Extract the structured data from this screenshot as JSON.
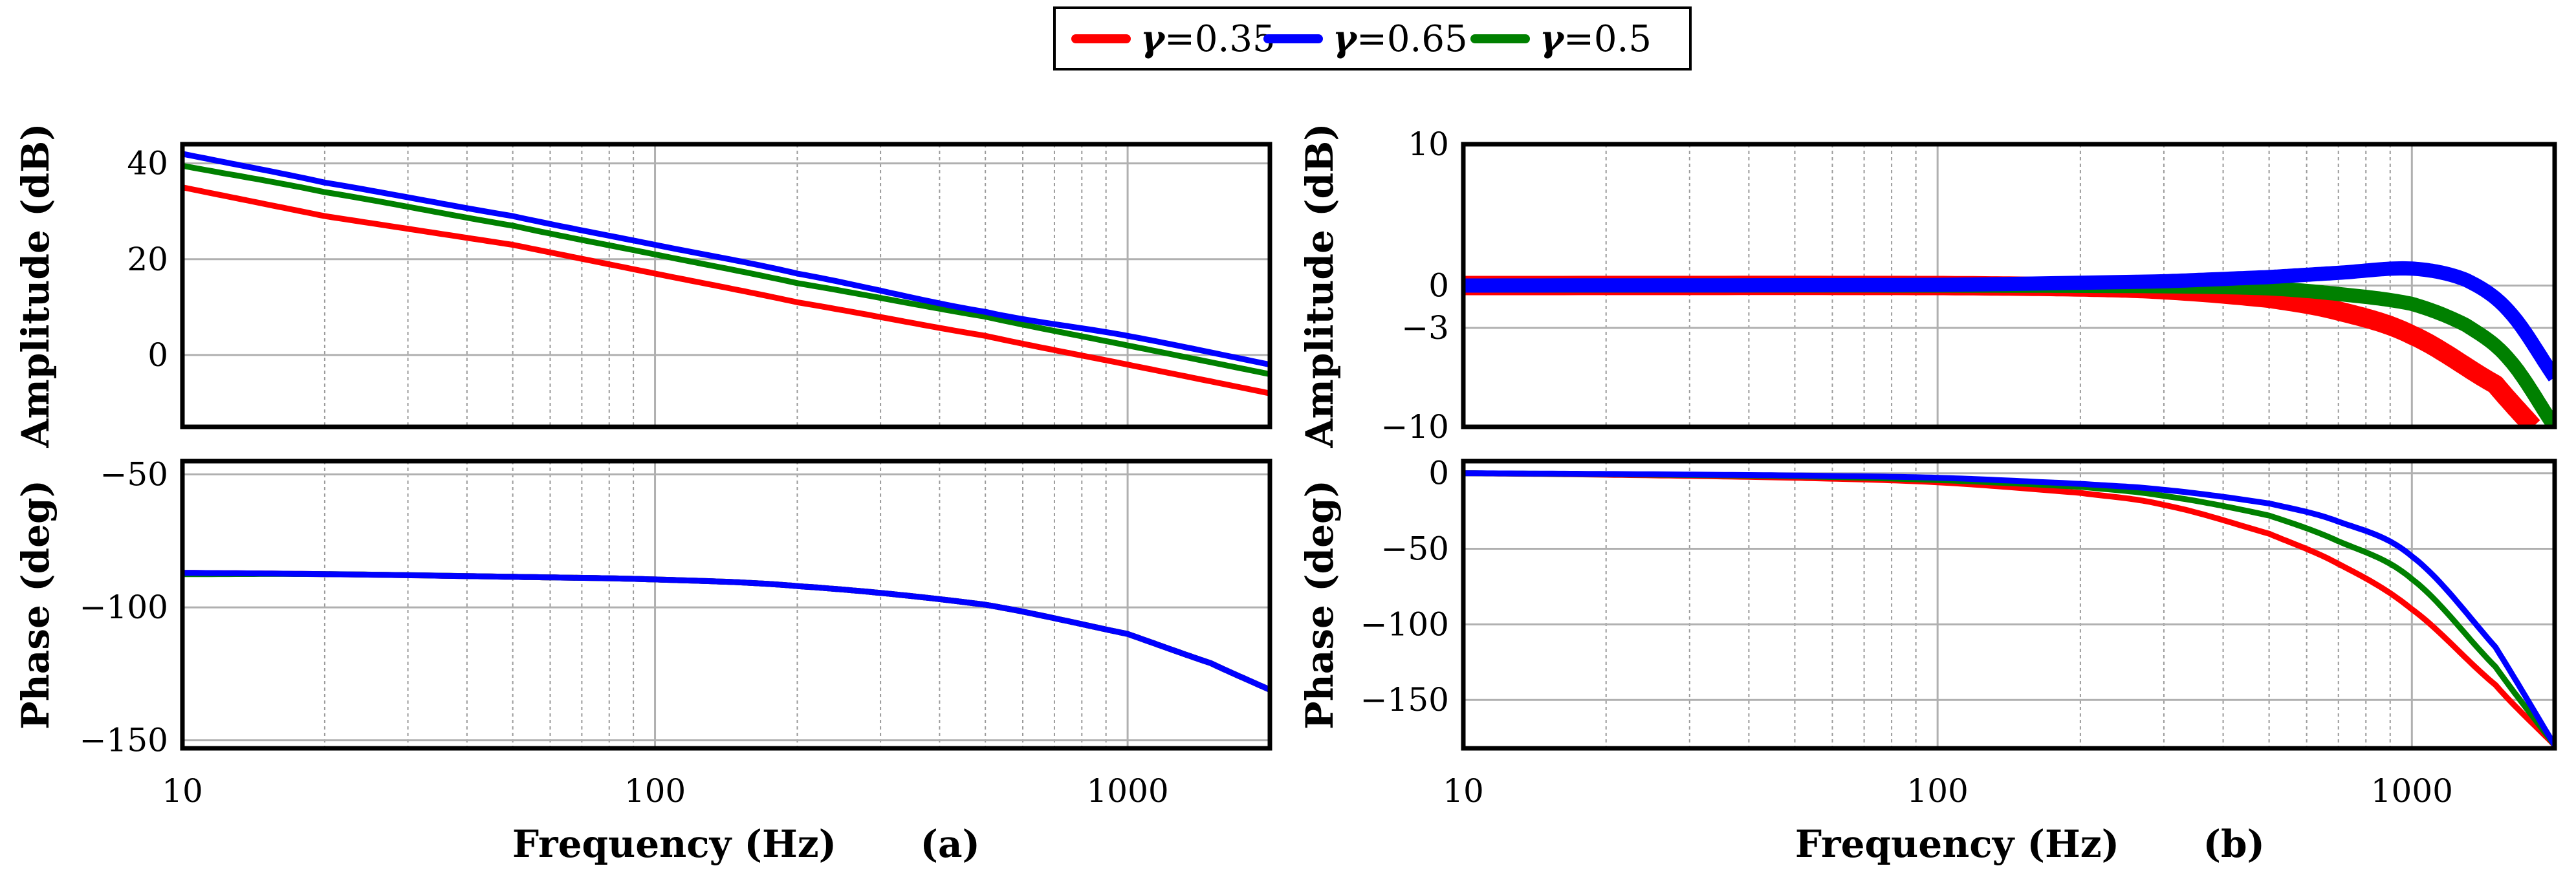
{
  "chart_data": {
    "type": "line",
    "title": "",
    "legend": {
      "placement": "top-center",
      "entries": [
        {
          "symbol": "γ",
          "text": "=0.35",
          "color": "#ff0000"
        },
        {
          "symbol": "γ",
          "text": "=0.65",
          "color": "#0000ff"
        },
        {
          "symbol": "γ",
          "text": "=0.5",
          "color": "#008000"
        }
      ]
    },
    "x_axis": {
      "scale": "log",
      "xlim": [
        10,
        2000
      ],
      "ticks": [
        10,
        100,
        1000
      ],
      "tick_labels": [
        "10",
        "100",
        "1000"
      ]
    },
    "panels": [
      {
        "id": "a",
        "tag": "(a)",
        "xlabel": "Frequency (Hz)",
        "plots": [
          {
            "ylabel": "Amplitude (dB)",
            "ylim": [
              -15,
              44
            ],
            "yticks": [
              0,
              20,
              40
            ],
            "ytick_labels": [
              "0",
              "20",
              "40"
            ],
            "grid": true,
            "series": [
              {
                "name": "γ=0.35",
                "color": "#ff0000",
                "x": [
                  10,
                  20,
                  50,
                  100,
                  200,
                  500,
                  1000,
                  2000
                ],
                "y": [
                  35,
                  29,
                  23,
                  17,
                  11,
                  4,
                  -2,
                  -8
                ]
              },
              {
                "name": "γ=0.65",
                "color": "#0000ff",
                "x": [
                  10,
                  20,
                  50,
                  100,
                  200,
                  500,
                  1000,
                  2000
                ],
                "y": [
                  42,
                  36,
                  29,
                  23,
                  17,
                  9,
                  4,
                  -2
                ]
              },
              {
                "name": "γ=0.5",
                "color": "#008000",
                "x": [
                  10,
                  20,
                  50,
                  100,
                  200,
                  500,
                  1000,
                  2000
                ],
                "y": [
                  39.5,
                  34,
                  27,
                  21,
                  15,
                  8,
                  2,
                  -4
                ]
              }
            ]
          },
          {
            "ylabel": "Phase (deg)",
            "ylim": [
              -153,
              -45
            ],
            "yticks": [
              -150,
              -100,
              -50
            ],
            "ytick_labels": [
              "−150",
              "−100",
              "−50"
            ],
            "grid": true,
            "series": [
              {
                "name": "γ=0.35",
                "color": "#ff0000",
                "x": [
                  10,
                  20,
                  50,
                  100,
                  200,
                  500,
                  1000,
                  1500,
                  2000
                ],
                "y": [
                  -87,
                  -87.5,
                  -88.5,
                  -89.5,
                  -92,
                  -99,
                  -110,
                  -121,
                  -131
                ]
              },
              {
                "name": "γ=0.65",
                "color": "#0000ff",
                "x": [
                  10,
                  20,
                  50,
                  100,
                  200,
                  500,
                  1000,
                  1500,
                  2000
                ],
                "y": [
                  -87,
                  -87.5,
                  -88.5,
                  -89.5,
                  -92,
                  -99,
                  -110,
                  -121,
                  -131
                ]
              },
              {
                "name": "γ=0.5",
                "color": "#008000",
                "x": [
                  10,
                  20,
                  50,
                  100,
                  200,
                  500,
                  1000,
                  1500,
                  2000
                ],
                "y": [
                  -87.5,
                  -87.5,
                  -88.5,
                  -89.5,
                  -92,
                  -99,
                  -110,
                  -121,
                  -131
                ]
              }
            ]
          }
        ]
      },
      {
        "id": "b",
        "tag": "(b)",
        "xlabel": "Frequency (Hz)",
        "plots": [
          {
            "ylabel": "Amplitude (dB)",
            "ylim": [
              -10,
              10
            ],
            "yticks": [
              -10,
              -3,
              0,
              10
            ],
            "ytick_labels": [
              "−10",
              "−3",
              "0",
              "10"
            ],
            "grid": true,
            "series": [
              {
                "name": "γ=0.35",
                "color": "#ff0000",
                "x": [
                  10,
                  100,
                  200,
                  300,
                  500,
                  700,
                  1000,
                  1500,
                  1800
                ],
                "y": [
                  0,
                  0,
                  -0.1,
                  -0.3,
                  -0.9,
                  -1.8,
                  -3.5,
                  -7,
                  -10
                ]
              },
              {
                "name": "γ=0.65",
                "color": "#0000ff",
                "x": [
                  10,
                  100,
                  300,
                  500,
                  700,
                  1000,
                  1300,
                  1600,
                  2000
                ],
                "y": [
                  0,
                  0.05,
                  0.3,
                  0.6,
                  0.9,
                  1.2,
                  0.4,
                  -1.8,
                  -6.5
                ]
              },
              {
                "name": "γ=0.5",
                "color": "#008000",
                "x": [
                  10,
                  100,
                  300,
                  500,
                  700,
                  1000,
                  1300,
                  1600,
                  2000
                ],
                "y": [
                  0,
                  0,
                  -0.05,
                  -0.2,
                  -0.6,
                  -1.3,
                  -2.8,
                  -5.2,
                  -10
                ]
              }
            ]
          },
          {
            "ylabel": "Phase (deg)",
            "ylim": [
              -182,
              8
            ],
            "yticks": [
              -150,
              -100,
              -50,
              0
            ],
            "ytick_labels": [
              "−150",
              "−100",
              "−50",
              "0"
            ],
            "grid": true,
            "series": [
              {
                "name": "γ=0.35",
                "color": "#ff0000",
                "x": [
                  10,
                  20,
                  50,
                  100,
                  200,
                  300,
                  500,
                  700,
                  1000,
                  1500,
                  2000
                ],
                "y": [
                  0,
                  -1,
                  -3,
                  -6,
                  -13,
                  -21,
                  -40,
                  -60,
                  -90,
                  -140,
                  -180
                ]
              },
              {
                "name": "γ=0.65",
                "color": "#0000ff",
                "x": [
                  10,
                  20,
                  50,
                  100,
                  200,
                  300,
                  500,
                  700,
                  1000,
                  1500,
                  2000
                ],
                "y": [
                  0,
                  -0.5,
                  -1.5,
                  -3,
                  -7,
                  -11,
                  -20,
                  -32,
                  -55,
                  -115,
                  -180
                ]
              },
              {
                "name": "γ=0.5",
                "color": "#008000",
                "x": [
                  10,
                  20,
                  50,
                  100,
                  200,
                  300,
                  500,
                  700,
                  1000,
                  1500,
                  2000
                ],
                "y": [
                  0,
                  -0.7,
                  -2,
                  -4.5,
                  -9,
                  -15,
                  -28,
                  -45,
                  -70,
                  -128,
                  -180
                ]
              }
            ]
          }
        ]
      }
    ]
  }
}
